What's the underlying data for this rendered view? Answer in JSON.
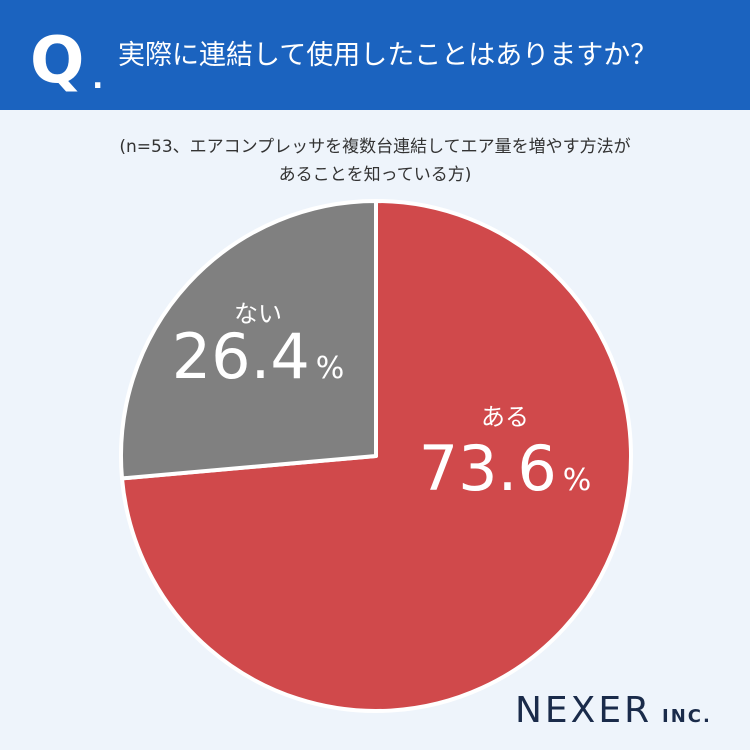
{
  "header": {
    "mark": "Q",
    "dot": ".",
    "question": "実際に連結して使用したことはありますか？"
  },
  "chart_data": {
    "type": "pie",
    "subtitle": [
      "(n=53、エアコンプレッサを複数台連結してエア量を増やす方法が",
      "あることを知っている方)"
    ],
    "categories": [
      "ある",
      "ない"
    ],
    "values": [
      73.6,
      26.4
    ],
    "unit": "%",
    "colors": [
      "#d0494b",
      "#808080"
    ]
  },
  "brand": {
    "name": "NEXER",
    "suffix": "INC."
  }
}
